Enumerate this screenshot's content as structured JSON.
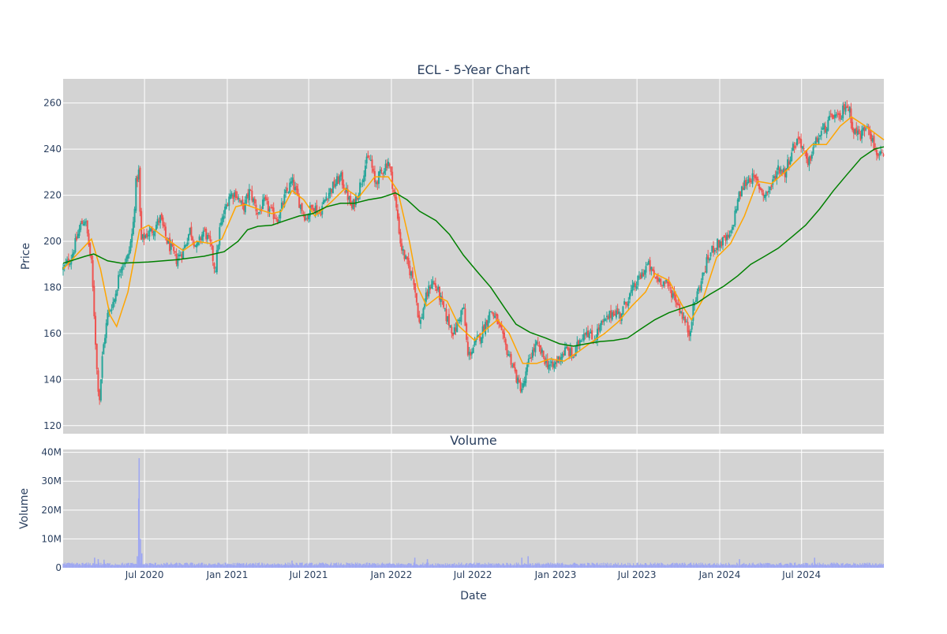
{
  "chart_data": [
    {
      "type": "candlestick",
      "title": "ECL - 5-Year Chart",
      "xlabel": "",
      "ylabel": "Price",
      "ylim": [
        116.5,
        270.5
      ],
      "xlim": [
        "2020-01-02",
        "2024-12-31"
      ],
      "grid": true,
      "legend": "none",
      "x_ticks": [
        "Jul 2020",
        "Jan 2021",
        "Jul 2021",
        "Jan 2022",
        "Jul 2022",
        "Jan 2023",
        "Jul 2023",
        "Jan 2024",
        "Jul 2024"
      ],
      "x_tick_dates": [
        "2020-07-01",
        "2021-01-01",
        "2021-07-01",
        "2022-01-01",
        "2022-07-01",
        "2023-01-01",
        "2023-07-01",
        "2024-01-01",
        "2024-07-01"
      ],
      "y_ticks": [
        120,
        140,
        160,
        180,
        200,
        220,
        240,
        260
      ],
      "colors": {
        "up": "#26a69a",
        "down": "#ef5350",
        "sma50": "#ffa500",
        "sma200": "#008000",
        "background": "#d3d3d3"
      },
      "price_path": [
        [
          "2020-01-02",
          188
        ],
        [
          "2020-01-20",
          193
        ],
        [
          "2020-02-10",
          207
        ],
        [
          "2020-02-20",
          210
        ],
        [
          "2020-03-05",
          190
        ],
        [
          "2020-03-12",
          165
        ],
        [
          "2020-03-18",
          140
        ],
        [
          "2020-03-23",
          132
        ],
        [
          "2020-03-30",
          152
        ],
        [
          "2020-04-10",
          168
        ],
        [
          "2020-04-25",
          175
        ],
        [
          "2020-05-10",
          190
        ],
        [
          "2020-05-25",
          193
        ],
        [
          "2020-06-05",
          205
        ],
        [
          "2020-06-12",
          225
        ],
        [
          "2020-06-18",
          230
        ],
        [
          "2020-06-23",
          200
        ],
        [
          "2020-07-05",
          203
        ],
        [
          "2020-07-20",
          205
        ],
        [
          "2020-08-05",
          210
        ],
        [
          "2020-08-20",
          200
        ],
        [
          "2020-09-10",
          192
        ],
        [
          "2020-09-25",
          196
        ],
        [
          "2020-10-10",
          205
        ],
        [
          "2020-10-25",
          197
        ],
        [
          "2020-11-10",
          205
        ],
        [
          "2020-11-25",
          198
        ],
        [
          "2020-12-05",
          187
        ],
        [
          "2020-12-15",
          205
        ],
        [
          "2021-01-05",
          220
        ],
        [
          "2021-01-20",
          221
        ],
        [
          "2021-02-05",
          214
        ],
        [
          "2021-02-20",
          222
        ],
        [
          "2021-03-10",
          212
        ],
        [
          "2021-03-25",
          217
        ],
        [
          "2021-04-10",
          212
        ],
        [
          "2021-04-25",
          210
        ],
        [
          "2021-05-10",
          220
        ],
        [
          "2021-05-25",
          226
        ],
        [
          "2021-06-10",
          217
        ],
        [
          "2021-06-25",
          210
        ],
        [
          "2021-07-10",
          216
        ],
        [
          "2021-07-25",
          212
        ],
        [
          "2021-08-10",
          220
        ],
        [
          "2021-08-25",
          224
        ],
        [
          "2021-09-10",
          228
        ],
        [
          "2021-09-25",
          220
        ],
        [
          "2021-10-05",
          214
        ],
        [
          "2021-10-20",
          222
        ],
        [
          "2021-11-05",
          234
        ],
        [
          "2021-11-15",
          236
        ],
        [
          "2021-11-25",
          225
        ],
        [
          "2021-12-10",
          230
        ],
        [
          "2021-12-25",
          235
        ],
        [
          "2022-01-05",
          223
        ],
        [
          "2022-01-15",
          210
        ],
        [
          "2022-01-22",
          198
        ],
        [
          "2022-02-05",
          190
        ],
        [
          "2022-02-20",
          183
        ],
        [
          "2022-03-05",
          163
        ],
        [
          "2022-03-15",
          173
        ],
        [
          "2022-04-01",
          183
        ],
        [
          "2022-04-15",
          178
        ],
        [
          "2022-05-01",
          168
        ],
        [
          "2022-05-20",
          160
        ],
        [
          "2022-06-10",
          172
        ],
        [
          "2022-06-20",
          150
        ],
        [
          "2022-07-05",
          155
        ],
        [
          "2022-07-20",
          160
        ],
        [
          "2022-08-10",
          170
        ],
        [
          "2022-08-25",
          165
        ],
        [
          "2022-09-10",
          155
        ],
        [
          "2022-09-25",
          148
        ],
        [
          "2022-10-10",
          138
        ],
        [
          "2022-10-20",
          136
        ],
        [
          "2022-11-05",
          150
        ],
        [
          "2022-11-20",
          155
        ],
        [
          "2022-12-10",
          148
        ],
        [
          "2022-12-25",
          145
        ],
        [
          "2023-01-10",
          150
        ],
        [
          "2023-01-25",
          153
        ],
        [
          "2023-02-10",
          150
        ],
        [
          "2023-02-25",
          158
        ],
        [
          "2023-03-10",
          162
        ],
        [
          "2023-03-25",
          157
        ],
        [
          "2023-04-10",
          163
        ],
        [
          "2023-04-25",
          166
        ],
        [
          "2023-05-10",
          170
        ],
        [
          "2023-05-25",
          168
        ],
        [
          "2023-06-10",
          175
        ],
        [
          "2023-06-25",
          180
        ],
        [
          "2023-07-10",
          185
        ],
        [
          "2023-07-25",
          190
        ],
        [
          "2023-08-10",
          184
        ],
        [
          "2023-08-25",
          183
        ],
        [
          "2023-09-10",
          180
        ],
        [
          "2023-09-25",
          175
        ],
        [
          "2023-10-10",
          168
        ],
        [
          "2023-10-25",
          160
        ],
        [
          "2023-11-05",
          173
        ],
        [
          "2023-11-20",
          182
        ],
        [
          "2023-12-05",
          192
        ],
        [
          "2023-12-20",
          198
        ],
        [
          "2024-01-10",
          200
        ],
        [
          "2024-01-25",
          202
        ],
        [
          "2024-02-10",
          218
        ],
        [
          "2024-02-25",
          225
        ],
        [
          "2024-03-10",
          228
        ],
        [
          "2024-03-25",
          225
        ],
        [
          "2024-04-10",
          220
        ],
        [
          "2024-04-25",
          224
        ],
        [
          "2024-05-10",
          232
        ],
        [
          "2024-05-25",
          230
        ],
        [
          "2024-06-10",
          240
        ],
        [
          "2024-06-25",
          245
        ],
        [
          "2024-07-05",
          240
        ],
        [
          "2024-07-15",
          232
        ],
        [
          "2024-07-25",
          240
        ],
        [
          "2024-08-10",
          246
        ],
        [
          "2024-08-25",
          250
        ],
        [
          "2024-09-10",
          255
        ],
        [
          "2024-09-25",
          252
        ],
        [
          "2024-10-05",
          260
        ],
        [
          "2024-10-15",
          257
        ],
        [
          "2024-10-25",
          248
        ],
        [
          "2024-11-10",
          246
        ],
        [
          "2024-11-25",
          252
        ],
        [
          "2024-12-10",
          240
        ],
        [
          "2024-12-31",
          235
        ]
      ],
      "sma50": [
        [
          "2020-01-02",
          188
        ],
        [
          "2020-02-10",
          196
        ],
        [
          "2020-03-05",
          201
        ],
        [
          "2020-03-25",
          188
        ],
        [
          "2020-04-15",
          168
        ],
        [
          "2020-04-30",
          163
        ],
        [
          "2020-05-25",
          178
        ],
        [
          "2020-06-20",
          205
        ],
        [
          "2020-07-10",
          207
        ],
        [
          "2020-08-05",
          203
        ],
        [
          "2020-09-10",
          198
        ],
        [
          "2020-09-25",
          196
        ],
        [
          "2020-10-25",
          200
        ],
        [
          "2020-11-25",
          199
        ],
        [
          "2020-12-20",
          201
        ],
        [
          "2021-01-20",
          215
        ],
        [
          "2021-02-10",
          216
        ],
        [
          "2021-03-10",
          214
        ],
        [
          "2021-04-10",
          212
        ],
        [
          "2021-05-01",
          213
        ],
        [
          "2021-05-25",
          222
        ],
        [
          "2021-06-20",
          218
        ],
        [
          "2021-07-15",
          211
        ],
        [
          "2021-08-20",
          217
        ],
        [
          "2021-09-20",
          223
        ],
        [
          "2021-10-20",
          219
        ],
        [
          "2021-11-25",
          228
        ],
        [
          "2021-12-25",
          228
        ],
        [
          "2022-01-15",
          222
        ],
        [
          "2022-02-10",
          200
        ],
        [
          "2022-03-01",
          180
        ],
        [
          "2022-03-20",
          172
        ],
        [
          "2022-04-15",
          176
        ],
        [
          "2022-05-05",
          174
        ],
        [
          "2022-06-01",
          163
        ],
        [
          "2022-07-05",
          157
        ],
        [
          "2022-08-01",
          162
        ],
        [
          "2022-08-25",
          166
        ],
        [
          "2022-09-20",
          160
        ],
        [
          "2022-10-20",
          147
        ],
        [
          "2022-11-20",
          147
        ],
        [
          "2022-12-20",
          149
        ],
        [
          "2023-01-20",
          148
        ],
        [
          "2023-02-20",
          152
        ],
        [
          "2023-03-20",
          156
        ],
        [
          "2023-04-20",
          160
        ],
        [
          "2023-05-20",
          165
        ],
        [
          "2023-06-20",
          172
        ],
        [
          "2023-07-20",
          178
        ],
        [
          "2023-08-10",
          186
        ],
        [
          "2023-09-10",
          183
        ],
        [
          "2023-10-10",
          172
        ],
        [
          "2023-10-30",
          166
        ],
        [
          "2023-11-25",
          175
        ],
        [
          "2023-12-25",
          193
        ],
        [
          "2024-01-25",
          199
        ],
        [
          "2024-02-25",
          211
        ],
        [
          "2024-03-25",
          226
        ],
        [
          "2024-04-25",
          225
        ],
        [
          "2024-05-25",
          230
        ],
        [
          "2024-06-25",
          236
        ],
        [
          "2024-07-25",
          242
        ],
        [
          "2024-08-25",
          242
        ],
        [
          "2024-09-25",
          250
        ],
        [
          "2024-10-20",
          254
        ],
        [
          "2024-11-20",
          250
        ],
        [
          "2024-12-31",
          244
        ]
      ],
      "sma200": [
        [
          "2020-01-02",
          190.5
        ],
        [
          "2020-02-20",
          193.5
        ],
        [
          "2020-03-10",
          194.5
        ],
        [
          "2020-04-10",
          191.5
        ],
        [
          "2020-05-10",
          190.5
        ],
        [
          "2020-07-10",
          191
        ],
        [
          "2020-09-10",
          192
        ],
        [
          "2020-11-10",
          193.5
        ],
        [
          "2020-12-25",
          195.5
        ],
        [
          "2021-01-25",
          200
        ],
        [
          "2021-02-15",
          205
        ],
        [
          "2021-03-10",
          206.5
        ],
        [
          "2021-04-10",
          207
        ],
        [
          "2021-05-10",
          209
        ],
        [
          "2021-06-10",
          211
        ],
        [
          "2021-07-10",
          212
        ],
        [
          "2021-08-10",
          215
        ],
        [
          "2021-09-10",
          216.5
        ],
        [
          "2021-10-10",
          216.5
        ],
        [
          "2021-11-10",
          218
        ],
        [
          "2021-12-10",
          219
        ],
        [
          "2022-01-10",
          221
        ],
        [
          "2022-02-05",
          218
        ],
        [
          "2022-03-05",
          213
        ],
        [
          "2022-04-10",
          209
        ],
        [
          "2022-05-10",
          203
        ],
        [
          "2022-06-10",
          194
        ],
        [
          "2022-07-10",
          187
        ],
        [
          "2022-08-10",
          180
        ],
        [
          "2022-09-10",
          171
        ],
        [
          "2022-10-05",
          164
        ],
        [
          "2022-11-05",
          160.5
        ],
        [
          "2022-12-10",
          158
        ],
        [
          "2023-01-10",
          155.5
        ],
        [
          "2023-02-10",
          154.5
        ],
        [
          "2023-03-10",
          155.5
        ],
        [
          "2023-04-10",
          156.5
        ],
        [
          "2023-05-10",
          157
        ],
        [
          "2023-06-10",
          158
        ],
        [
          "2023-07-10",
          162
        ],
        [
          "2023-08-10",
          166
        ],
        [
          "2023-09-10",
          169
        ],
        [
          "2023-10-10",
          171
        ],
        [
          "2023-11-10",
          173
        ],
        [
          "2023-12-10",
          177
        ],
        [
          "2024-01-10",
          180.5
        ],
        [
          "2024-02-10",
          185
        ],
        [
          "2024-03-10",
          190
        ],
        [
          "2024-04-10",
          193.5
        ],
        [
          "2024-05-10",
          197
        ],
        [
          "2024-06-10",
          202
        ],
        [
          "2024-07-10",
          207
        ],
        [
          "2024-08-10",
          214
        ],
        [
          "2024-09-10",
          222
        ],
        [
          "2024-10-10",
          229
        ],
        [
          "2024-11-10",
          236
        ],
        [
          "2024-12-10",
          240
        ],
        [
          "2024-12-31",
          241
        ]
      ]
    },
    {
      "type": "bar",
      "title": "Volume",
      "xlabel": "Date",
      "ylabel": "Volume",
      "ylim": [
        0,
        41000000
      ],
      "y_ticks": [
        0,
        10000000,
        20000000,
        30000000,
        40000000
      ],
      "y_tick_labels": [
        "0",
        "10M",
        "20M",
        "30M",
        "40M"
      ],
      "x_ticks": [
        "Jul 2020",
        "Jan 2021",
        "Jul 2021",
        "Jan 2022",
        "Jul 2022",
        "Jan 2023",
        "Jul 2023",
        "Jan 2024",
        "Jul 2024"
      ],
      "bar_color": "#9ea7f2",
      "typical_volume": 1300000,
      "volume_spikes": [
        [
          "2020-03-12",
          3500000
        ],
        [
          "2020-03-20",
          3000000
        ],
        [
          "2020-04-02",
          2800000
        ],
        [
          "2020-06-15",
          4000000
        ],
        [
          "2020-06-18",
          24000000
        ],
        [
          "2020-06-19",
          38000000
        ],
        [
          "2020-06-22",
          10000000
        ],
        [
          "2020-06-25",
          5000000
        ],
        [
          "2021-05-25",
          2500000
        ],
        [
          "2022-02-22",
          3500000
        ],
        [
          "2022-03-22",
          3000000
        ],
        [
          "2022-10-18",
          3500000
        ],
        [
          "2022-11-01",
          4000000
        ],
        [
          "2024-02-14",
          3000000
        ],
        [
          "2024-07-30",
          3500000
        ]
      ]
    }
  ]
}
